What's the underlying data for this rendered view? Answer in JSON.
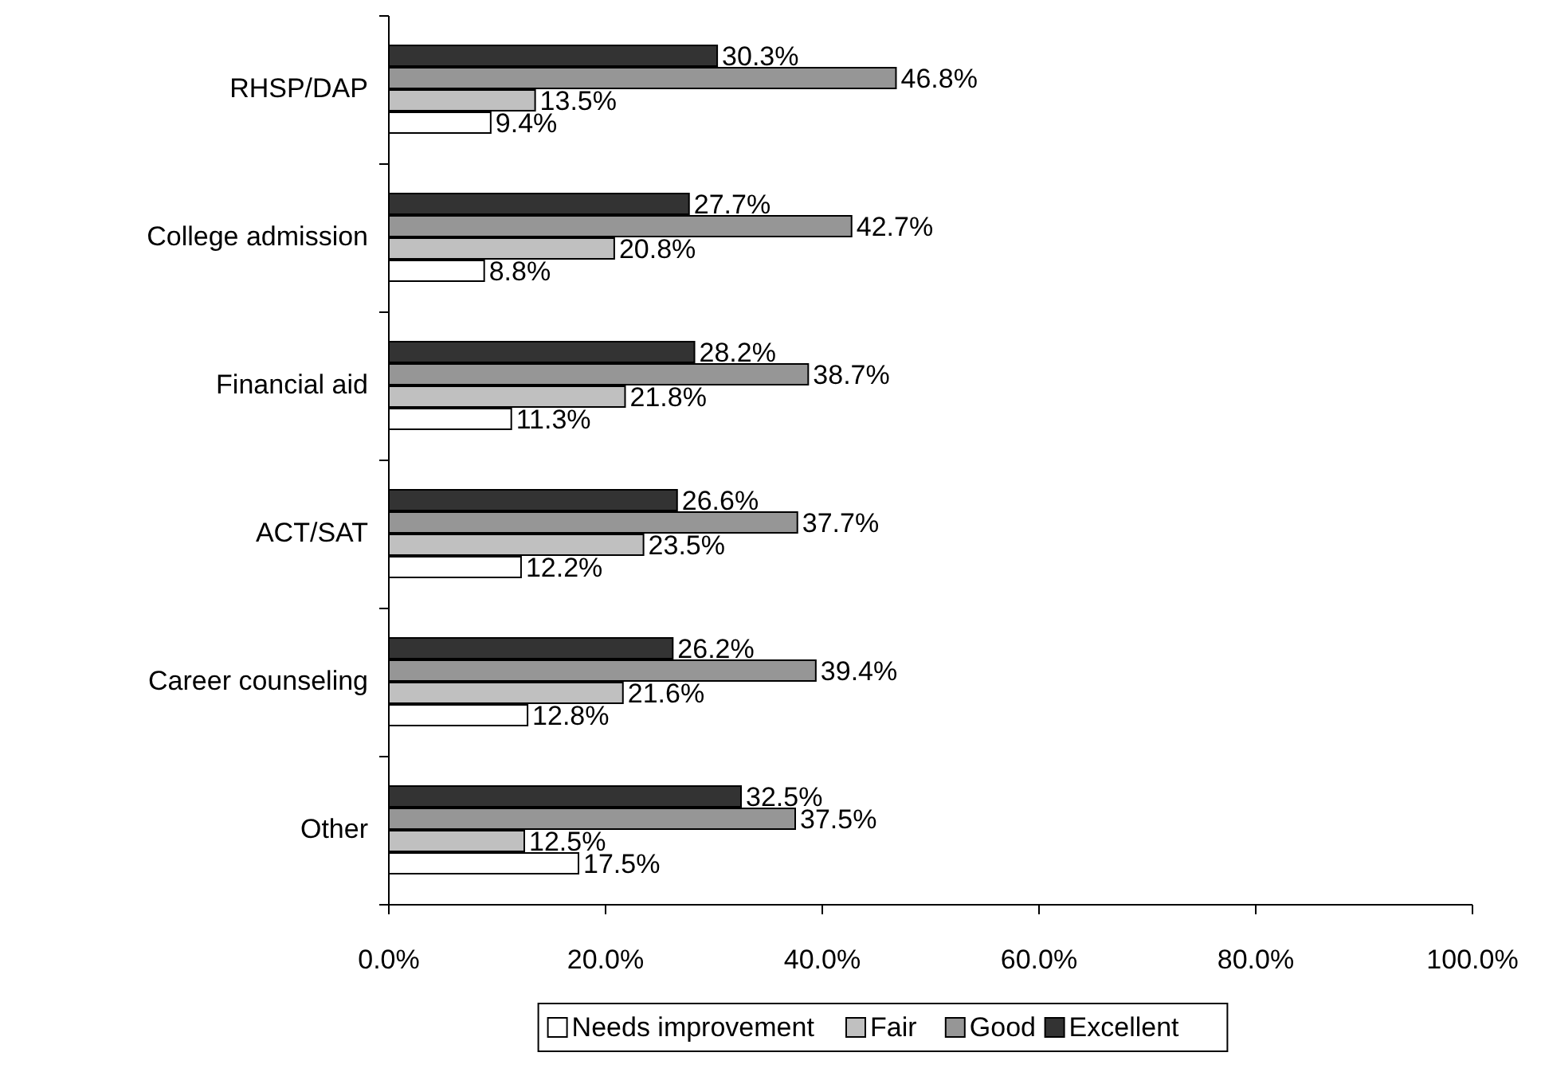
{
  "chart_data": {
    "type": "bar",
    "orientation": "horizontal",
    "categories": [
      "RHSP/DAP",
      "College admission",
      "Financial aid",
      "ACT/SAT",
      "Career counseling",
      "Other"
    ],
    "series": [
      {
        "name": "Needs improvement",
        "color": "#ffffff",
        "values": [
          9.4,
          8.8,
          11.3,
          12.2,
          12.8,
          17.5
        ],
        "value_labels": [
          "9.4%",
          "8.8%",
          "11.3%",
          "12.2%",
          "12.8%",
          "17.5%"
        ]
      },
      {
        "name": "Fair",
        "color": "#c0c0c0",
        "values": [
          13.5,
          20.8,
          21.8,
          23.5,
          21.6,
          12.5
        ],
        "value_labels": [
          "13.5%",
          "20.8%",
          "21.8%",
          "23.5%",
          "21.6%",
          "12.5%"
        ]
      },
      {
        "name": "Good",
        "color": "#969696",
        "values": [
          46.8,
          42.7,
          38.7,
          37.7,
          39.4,
          37.5
        ],
        "value_labels": [
          "46.8%",
          "42.7%",
          "38.7%",
          "37.7%",
          "39.4%",
          "37.5%"
        ]
      },
      {
        "name": "Excellent",
        "color": "#333333",
        "values": [
          30.3,
          27.7,
          28.2,
          26.6,
          26.2,
          32.5
        ],
        "value_labels": [
          "30.3%",
          "27.7%",
          "28.2%",
          "26.6%",
          "26.2%",
          "32.5%"
        ]
      }
    ],
    "xlim": [
      0,
      100
    ],
    "xticks": [
      {
        "value": 0,
        "label": "0.0%"
      },
      {
        "value": 20,
        "label": "20.0%"
      },
      {
        "value": 40,
        "label": "40.0%"
      },
      {
        "value": 60,
        "label": "60.0%"
      },
      {
        "value": 80,
        "label": "80.0%"
      },
      {
        "value": 100,
        "label": "100.0%"
      }
    ],
    "grid": false,
    "legend": "bottom"
  }
}
